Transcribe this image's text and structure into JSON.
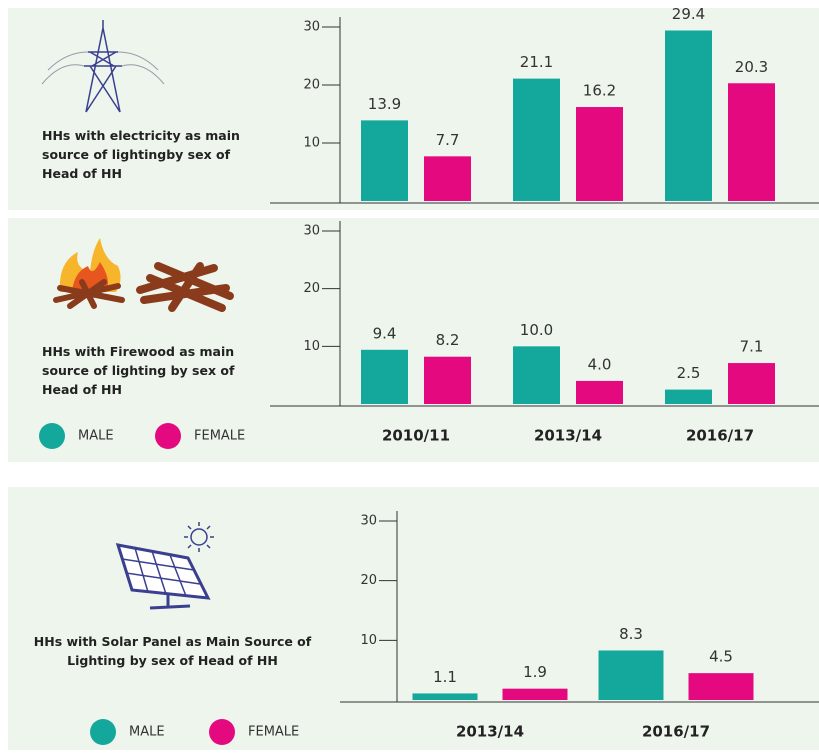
{
  "chart_data": [
    {
      "type": "bar",
      "title": "HHs with electricity as main source of lightingby sex of Head of HH",
      "categories": [
        null,
        null,
        null
      ],
      "series": [
        {
          "color": "#14a89c",
          "values": [
            13.9,
            21.1,
            29.4
          ]
        },
        {
          "color": "#e5097f",
          "values": [
            7.7,
            16.2,
            20.3
          ]
        }
      ],
      "ylim": [
        0,
        30
      ],
      "yticks": [
        10,
        20,
        30
      ]
    },
    {
      "type": "bar",
      "title": "HHs with Firewood as main source of lighting by sex of Head of HH",
      "categories": [
        "2010/11",
        "2013/14",
        "2016/17"
      ],
      "series": [
        {
          "name": "MALE",
          "color": "#14a89c",
          "values": [
            9.4,
            10.0,
            2.5
          ],
          "value_labels": [
            "9.4",
            "10.0",
            "2.5"
          ]
        },
        {
          "name": "FEMALE",
          "color": "#e5097f",
          "values": [
            8.2,
            4.0,
            7.1
          ],
          "value_labels": [
            "8.2",
            "4.0",
            "7.1"
          ]
        }
      ],
      "ylim": [
        0,
        30
      ],
      "yticks": [
        10,
        20,
        30
      ]
    },
    {
      "type": "bar",
      "title": "HHs with Solar Panel as Main Source of Lighting by sex of Head of HH",
      "categories": [
        "2013/14",
        "2016/17"
      ],
      "series": [
        {
          "name": "MALE",
          "color": "#14a89c",
          "values": [
            1.1,
            8.3
          ]
        },
        {
          "name": "FEMALE",
          "color": "#e5097f",
          "values": [
            1.9,
            4.5
          ]
        }
      ],
      "ylim": [
        0,
        30
      ],
      "yticks": [
        10,
        20,
        30
      ]
    }
  ]
}
